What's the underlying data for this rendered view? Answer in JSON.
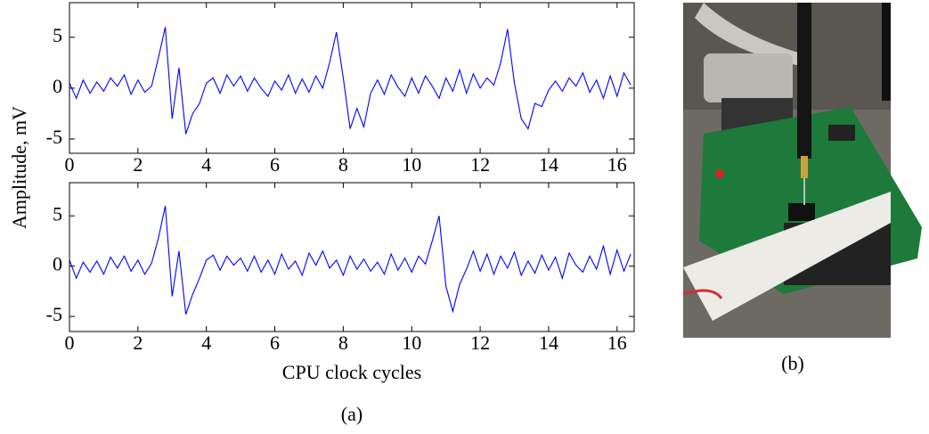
{
  "figure": {
    "ylabel": "Amplitude, mV",
    "xlabel": "CPU clock cycles",
    "caption_a": "(a)",
    "caption_b": "(b)"
  },
  "chart_data": [
    {
      "type": "line",
      "xlim": [
        0,
        16.5
      ],
      "ylim": [
        -6.4,
        8.4
      ],
      "xticks": [
        0,
        2,
        4,
        6,
        8,
        10,
        12,
        14,
        16
      ],
      "yticks": [
        -5,
        0,
        5
      ],
      "x": [
        0,
        0.2,
        0.4,
        0.6,
        0.8,
        1,
        1.2,
        1.4,
        1.6,
        1.8,
        2,
        2.2,
        2.4,
        2.6,
        2.8,
        3,
        3.2,
        3.4,
        3.6,
        3.8,
        4,
        4.2,
        4.4,
        4.6,
        4.8,
        5,
        5.2,
        5.4,
        5.6,
        5.8,
        6,
        6.2,
        6.4,
        6.6,
        6.8,
        7,
        7.2,
        7.4,
        7.6,
        7.8,
        8,
        8.2,
        8.4,
        8.6,
        8.8,
        9,
        9.2,
        9.4,
        9.6,
        9.8,
        10,
        10.2,
        10.4,
        10.6,
        10.8,
        11,
        11.2,
        11.4,
        11.6,
        11.8,
        12,
        12.2,
        12.4,
        12.6,
        12.8,
        13,
        13.2,
        13.4,
        13.6,
        13.8,
        14,
        14.2,
        14.4,
        14.6,
        14.8,
        15,
        15.2,
        15.4,
        15.6,
        15.8,
        16,
        16.2,
        16.4
      ],
      "color": "#0000ff",
      "values": [
        0.5,
        -1,
        0.8,
        -0.5,
        0.6,
        -0.3,
        1,
        0.2,
        1.3,
        -0.6,
        0.8,
        -0.4,
        0.2,
        3,
        6,
        -3,
        2,
        -4.5,
        -2.5,
        -1.5,
        0.5,
        1,
        -0.5,
        1.3,
        0.2,
        1.2,
        -0.3,
        1,
        0,
        -0.8,
        0.7,
        -0.2,
        1.3,
        -0.5,
        0.9,
        -0.4,
        1.2,
        0,
        2.5,
        5.5,
        1,
        -4,
        -2,
        -3.8,
        -0.5,
        0.8,
        -0.6,
        1.3,
        0.1,
        -0.8,
        1,
        -0.5,
        1.2,
        0.2,
        -1,
        1,
        -0.3,
        1.8,
        -0.5,
        1.4,
        0,
        1,
        0.3,
        2.5,
        5.8,
        0.5,
        -3,
        -4,
        -1.5,
        -1.8,
        -0.2,
        0.7,
        -0.3,
        1,
        0.2,
        1.5,
        -0.4,
        0.8,
        -1,
        1.2,
        -0.8,
        1.5,
        0.3
      ]
    },
    {
      "type": "line",
      "xlim": [
        0,
        16.5
      ],
      "ylim": [
        -6.5,
        8.3
      ],
      "xticks": [
        0,
        2,
        4,
        6,
        8,
        10,
        12,
        14,
        16
      ],
      "yticks": [
        -5,
        0,
        5
      ],
      "x": [
        0,
        0.2,
        0.4,
        0.6,
        0.8,
        1,
        1.2,
        1.4,
        1.6,
        1.8,
        2,
        2.2,
        2.4,
        2.6,
        2.8,
        3,
        3.2,
        3.4,
        3.6,
        3.8,
        4,
        4.2,
        4.4,
        4.6,
        4.8,
        5,
        5.2,
        5.4,
        5.6,
        5.8,
        6,
        6.2,
        6.4,
        6.6,
        6.8,
        7,
        7.2,
        7.4,
        7.6,
        7.8,
        8,
        8.2,
        8.4,
        8.6,
        8.8,
        9,
        9.2,
        9.4,
        9.6,
        9.8,
        10,
        10.2,
        10.4,
        10.6,
        10.8,
        11,
        11.2,
        11.4,
        11.6,
        11.8,
        12,
        12.2,
        12.4,
        12.6,
        12.8,
        13,
        13.2,
        13.4,
        13.6,
        13.8,
        14,
        14.2,
        14.4,
        14.6,
        14.8,
        15,
        15.2,
        15.4,
        15.6,
        15.8,
        16,
        16.2,
        16.4
      ],
      "color": "#0000ff",
      "values": [
        0.6,
        -1.2,
        0.4,
        -0.6,
        0.5,
        -0.8,
        0.9,
        -0.2,
        1,
        -0.5,
        0.6,
        -0.8,
        0.3,
        2.8,
        6,
        -3,
        1.5,
        -4.8,
        -2.8,
        -1.2,
        0.6,
        1.1,
        -0.4,
        1,
        0.1,
        0.8,
        -0.5,
        1,
        -0.6,
        0.6,
        -0.8,
        1.2,
        -0.3,
        0.5,
        -0.9,
        1.3,
        0.1,
        1.5,
        -0.2,
        0.6,
        -0.9,
        1,
        -0.3,
        0.7,
        -0.5,
        0.4,
        -0.8,
        1.2,
        -0.4,
        0.8,
        -0.6,
        1,
        0.2,
        2.5,
        5,
        -2,
        -4.5,
        -1.8,
        -0.3,
        1.5,
        -0.5,
        1.2,
        -0.8,
        1,
        -0.2,
        1.4,
        -0.9,
        0.5,
        -0.7,
        1.1,
        -0.4,
        0.9,
        -1.2,
        1.3,
        0.1,
        -0.6,
        1,
        -0.3,
        2,
        -0.8,
        1.6,
        -0.5,
        1.2
      ]
    }
  ]
}
